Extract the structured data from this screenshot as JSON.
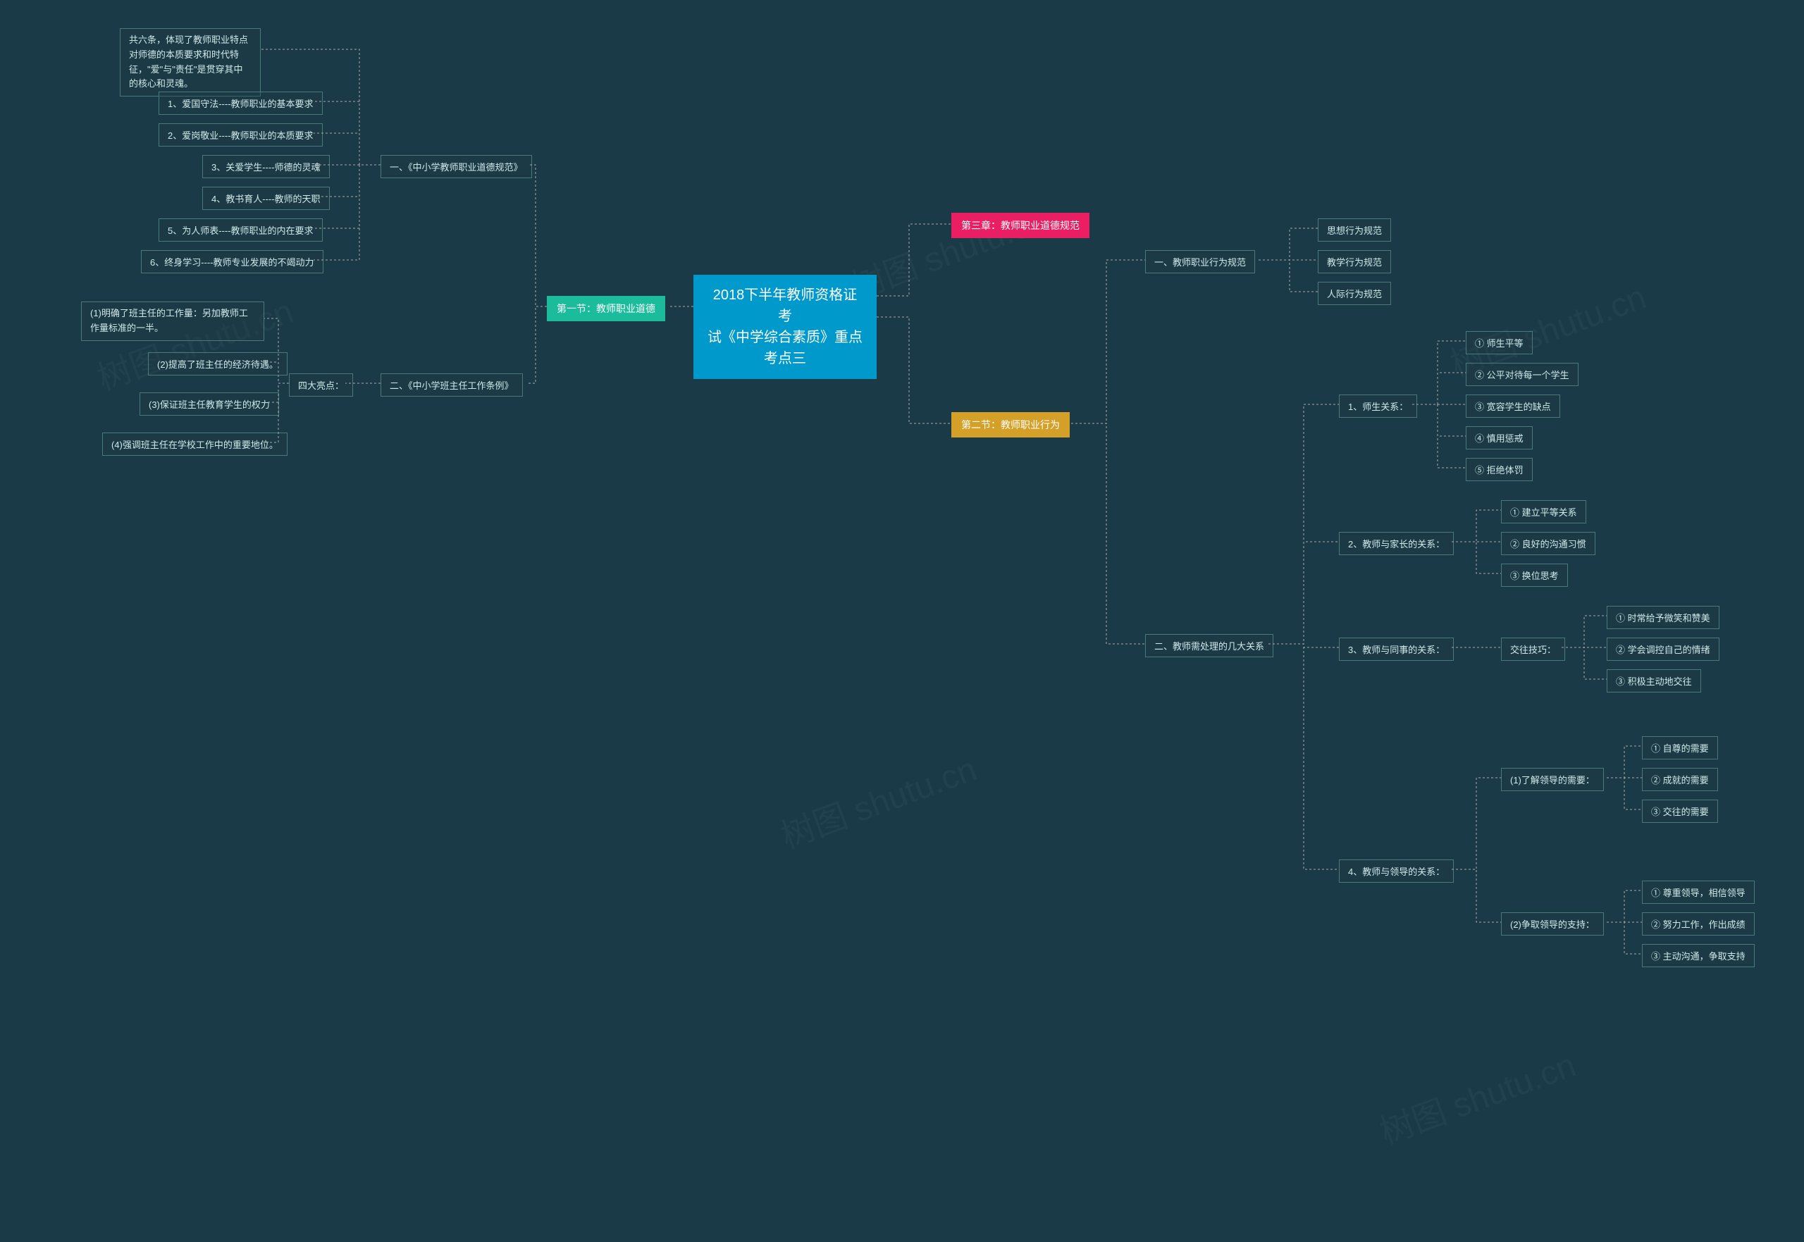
{
  "background_color": "#1a3a47",
  "node_border_color": "#4a7a7a",
  "node_text_color": "#d0e8e8",
  "connector_color": "#aaaaaa",
  "colors": {
    "center": "#0099cc",
    "green": "#1abc9c",
    "pink": "#e91e63",
    "yellow": "#d4a028"
  },
  "watermarks": [
    "树图 shutu.cn",
    "树图 shutu.cn",
    "树图 shutu.cn",
    "树图 shutu.cn",
    "树图 shutu.cn"
  ],
  "center": "2018下半年教师资格证考\n试《中学综合素质》重点\n考点三",
  "section1": {
    "title": "第一节：教师职业道德",
    "sub1": {
      "title": "一、《中小学教师职业道德规范》",
      "intro": "共六条，体现了教师职业特点对师德的本质要求和时代特征，\"爱\"与\"责任\"是贯穿其中的核心和灵魂。",
      "items": [
        "1、爱国守法----教师职业的基本要求",
        "2、爱岗敬业----教师职业的本质要求",
        "3、关爱学生----师德的灵魂",
        "4、教书育人----教师的天职",
        "5、为人师表----教师职业的内在要求",
        "6、终身学习----教师专业发展的不竭动力"
      ]
    },
    "sub2": {
      "title": "二、《中小学班主任工作条例》",
      "highlights_label": "四大亮点：",
      "highlights": [
        "(1)明确了班主任的工作量：另加教师工作量标准的一半。",
        "(2)提高了班主任的经济待遇。",
        "(3)保证班主任教育学生的权力",
        "(4)强调班主任在学校工作中的重要地位。"
      ]
    }
  },
  "section3": {
    "title": "第三章：教师职业道德规范"
  },
  "section2": {
    "title": "第二节：教师职业行为",
    "sub1": {
      "title": "一、教师职业行为规范",
      "items": [
        "思想行为规范",
        "教学行为规范",
        "人际行为规范"
      ]
    },
    "sub2": {
      "title": "二、教师需处理的几大关系",
      "rel1": {
        "title": "1、师生关系：",
        "items": [
          "① 师生平等",
          "② 公平对待每一个学生",
          "③ 宽容学生的缺点",
          "④ 慎用惩戒",
          "⑤ 拒绝体罚"
        ]
      },
      "rel2": {
        "title": "2、教师与家长的关系：",
        "items": [
          "① 建立平等关系",
          "② 良好的沟通习惯",
          "③ 换位思考"
        ]
      },
      "rel3": {
        "title": "3、教师与同事的关系：",
        "skill_label": "交往技巧：",
        "items": [
          "① 时常给予微笑和赞美",
          "② 学会调控自己的情绪",
          "③ 积极主动地交往"
        ]
      },
      "rel4": {
        "title": "4、教师与领导的关系：",
        "p1_label": "(1)了解领导的需要：",
        "p1_items": [
          "① 自尊的需要",
          "② 成就的需要",
          "③ 交往的需要"
        ],
        "p2_label": "(2)争取领导的支持：",
        "p2_items": [
          "① 尊重领导，相信领导",
          "② 努力工作，作出成绩",
          "③ 主动沟通，争取支持"
        ]
      }
    }
  }
}
